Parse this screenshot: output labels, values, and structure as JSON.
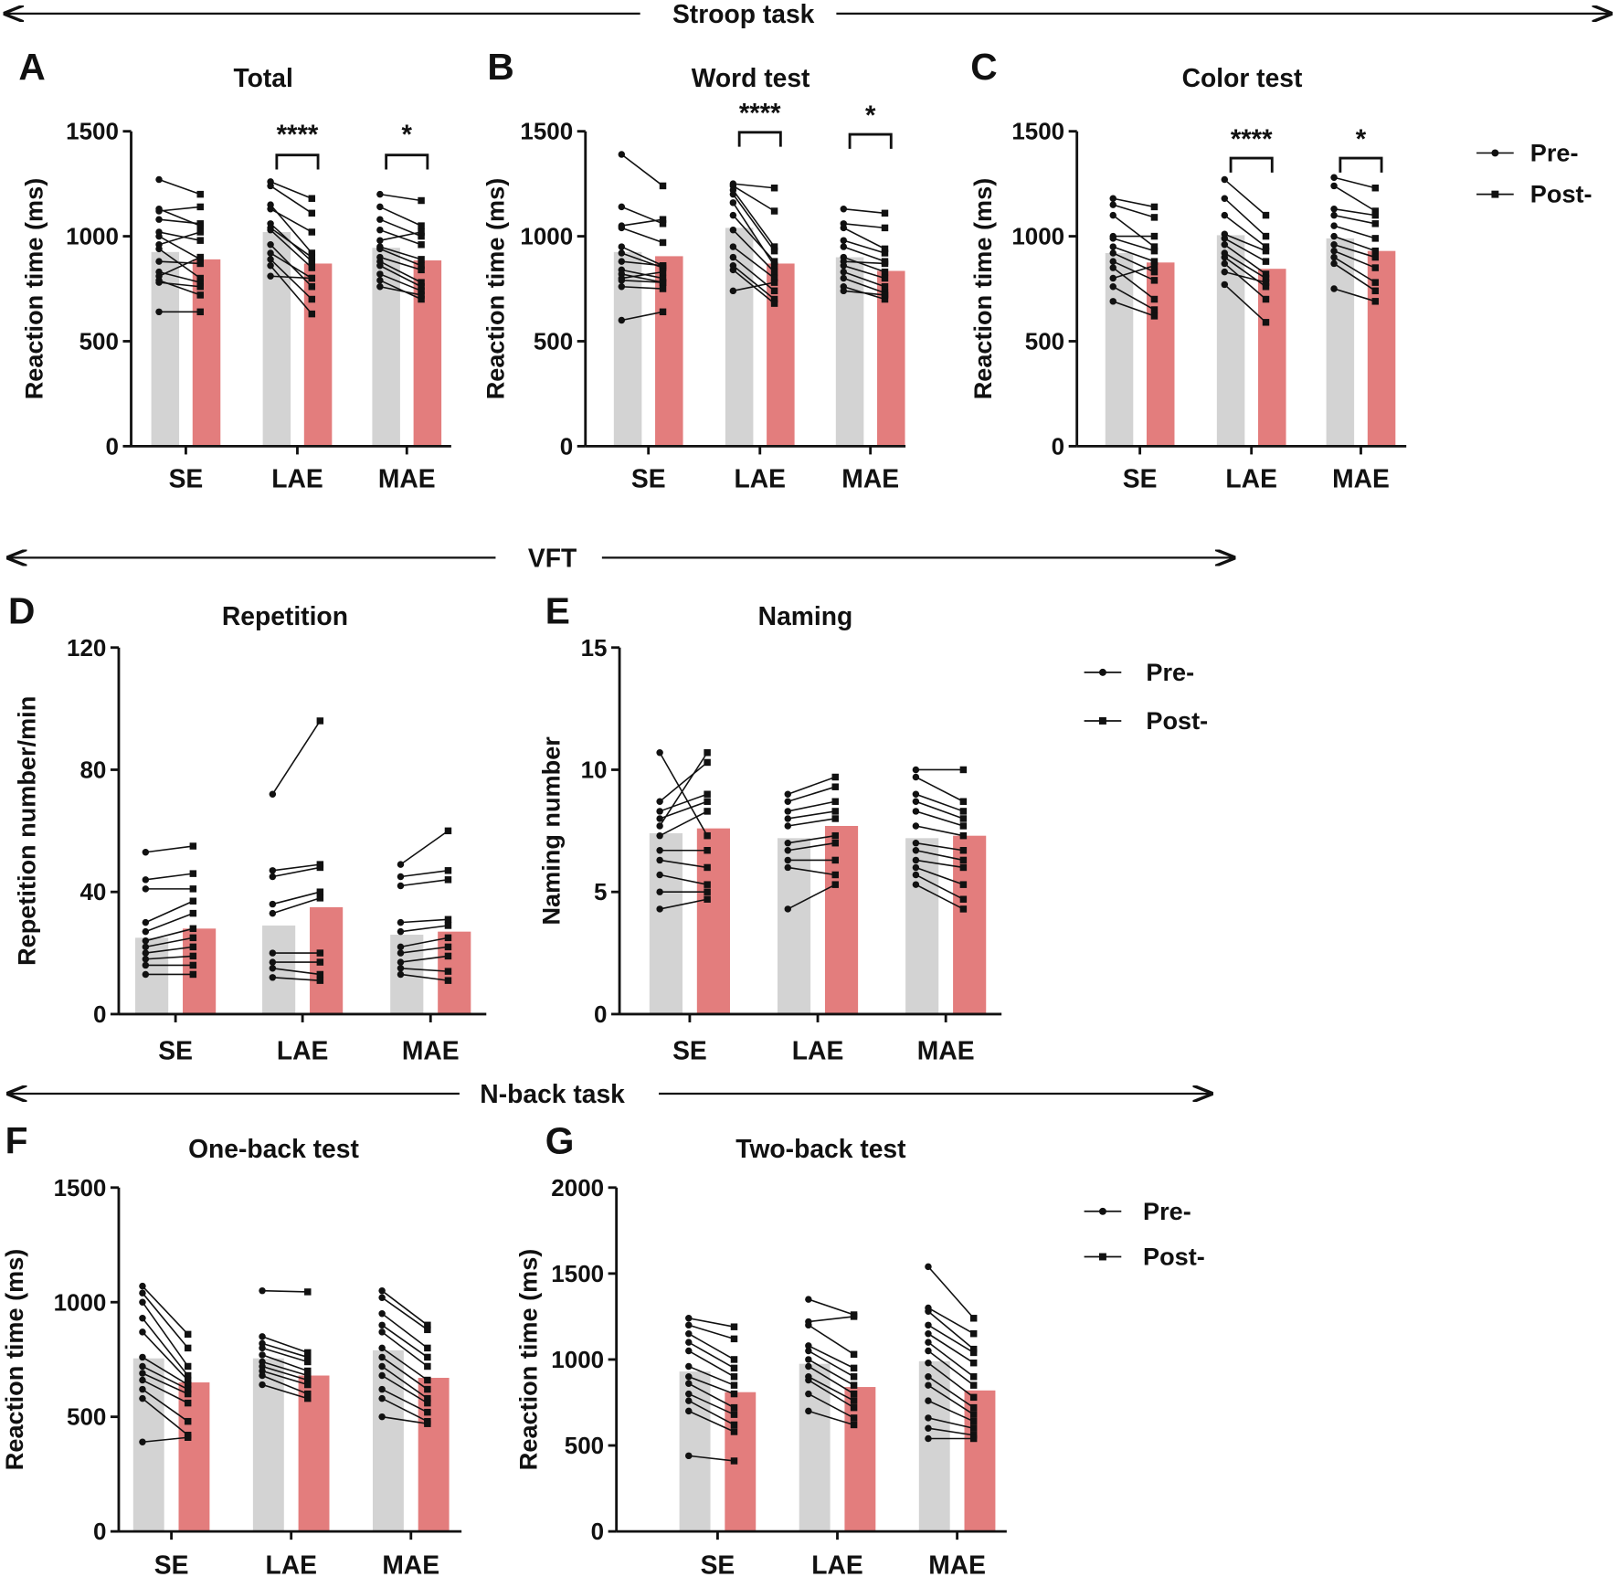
{
  "colors": {
    "pre": "#d3d3d3",
    "post": "#e37d7d",
    "ink": "#111111"
  },
  "sections": [
    {
      "label": "Stroop task"
    },
    {
      "label": "VFT"
    },
    {
      "label": "N-back task"
    }
  ],
  "legend": {
    "pre": "Pre-",
    "post": "Post-"
  },
  "chart_data": [
    {
      "type": "bar",
      "panel": "A",
      "title": "Total",
      "ylabel": "Reaction time (ms)",
      "ylim": [
        0,
        1500
      ],
      "yticks": [
        0,
        500,
        1000,
        1500
      ],
      "categories": [
        "SE",
        "LAE",
        "MAE"
      ],
      "series": [
        {
          "name": "Pre-",
          "values": [
            925,
            1020,
            945
          ]
        },
        {
          "name": "Post-",
          "values": [
            890,
            870,
            885
          ]
        }
      ],
      "significance": [
        "",
        "****",
        "*"
      ],
      "paired": [
        {
          "pre": [
            1270,
            1130,
            1120,
            1080,
            1020,
            1000,
            960,
            940,
            880,
            830,
            810,
            790,
            780,
            640
          ],
          "post": [
            1200,
            1050,
            1140,
            1060,
            980,
            890,
            1020,
            800,
            870,
            780,
            900,
            720,
            760,
            640
          ]
        },
        {
          "pre": [
            1260,
            1240,
            1150,
            1130,
            1060,
            1040,
            1030,
            960,
            920,
            890,
            860,
            810
          ],
          "post": [
            1180,
            1110,
            920,
            1020,
            880,
            900,
            850,
            760,
            800,
            700,
            630,
            800
          ]
        },
        {
          "pre": [
            1200,
            1140,
            1080,
            1030,
            980,
            950,
            940,
            900,
            880,
            860,
            820,
            790,
            760
          ],
          "post": [
            1170,
            1050,
            1000,
            960,
            1020,
            890,
            860,
            840,
            780,
            760,
            740,
            700,
            720
          ]
        }
      ]
    },
    {
      "type": "bar",
      "panel": "B",
      "title": "Word test",
      "ylabel": "Reaction time (ms)",
      "ylim": [
        0,
        1500
      ],
      "yticks": [
        0,
        500,
        1000,
        1500
      ],
      "categories": [
        "SE",
        "LAE",
        "MAE"
      ],
      "series": [
        {
          "name": "Pre-",
          "values": [
            925,
            1040,
            900
          ]
        },
        {
          "name": "Post-",
          "values": [
            905,
            870,
            835
          ]
        }
      ],
      "significance": [
        "",
        "****",
        "*"
      ],
      "paired": [
        {
          "pre": [
            1390,
            1140,
            1050,
            1040,
            950,
            920,
            880,
            840,
            820,
            800,
            790,
            760,
            600
          ],
          "post": [
            1240,
            1060,
            1080,
            970,
            860,
            850,
            860,
            800,
            780,
            830,
            780,
            750,
            640
          ]
        },
        {
          "pre": [
            1250,
            1240,
            1220,
            1200,
            1160,
            1100,
            1030,
            950,
            900,
            860,
            840,
            740
          ],
          "post": [
            1230,
            1120,
            950,
            930,
            860,
            880,
            830,
            800,
            740,
            700,
            680,
            780
          ]
        },
        {
          "pre": [
            1130,
            1060,
            1040,
            980,
            950,
            900,
            880,
            860,
            830,
            800,
            760,
            740
          ],
          "post": [
            1110,
            1040,
            940,
            920,
            880,
            830,
            870,
            800,
            760,
            730,
            700,
            720
          ]
        }
      ]
    },
    {
      "type": "bar",
      "panel": "C",
      "title": "Color test",
      "ylabel": "Reaction time (ms)",
      "ylim": [
        0,
        1500
      ],
      "yticks": [
        0,
        500,
        1000,
        1500
      ],
      "categories": [
        "SE",
        "LAE",
        "MAE"
      ],
      "series": [
        {
          "name": "Pre-",
          "values": [
            920,
            1005,
            990
          ]
        },
        {
          "name": "Post-",
          "values": [
            875,
            845,
            930
          ]
        }
      ],
      "significance": [
        "",
        "****",
        "*"
      ],
      "paired": [
        {
          "pre": [
            1180,
            1150,
            1100,
            1000,
            990,
            950,
            920,
            880,
            850,
            800,
            760,
            690
          ],
          "post": [
            1140,
            1090,
            950,
            1000,
            930,
            880,
            830,
            790,
            700,
            860,
            650,
            620
          ]
        },
        {
          "pre": [
            1270,
            1180,
            1100,
            1010,
            990,
            960,
            920,
            900,
            870,
            830,
            770
          ],
          "post": [
            1100,
            1000,
            950,
            930,
            880,
            820,
            800,
            760,
            700,
            780,
            590
          ]
        },
        {
          "pre": [
            1280,
            1240,
            1130,
            1100,
            1050,
            1000,
            960,
            930,
            900,
            870,
            750
          ],
          "post": [
            1230,
            1120,
            1100,
            1060,
            990,
            930,
            900,
            850,
            780,
            740,
            690
          ]
        }
      ]
    },
    {
      "type": "bar",
      "panel": "D",
      "title": "Repetition",
      "ylabel": "Repetition number/min",
      "ylim": [
        0,
        120
      ],
      "yticks": [
        0,
        40,
        80,
        120
      ],
      "categories": [
        "SE",
        "LAE",
        "MAE"
      ],
      "series": [
        {
          "name": "Pre-",
          "values": [
            25,
            29,
            26
          ]
        },
        {
          "name": "Post-",
          "values": [
            28,
            35,
            27
          ]
        }
      ],
      "significance": [
        "",
        "",
        ""
      ],
      "paired": [
        {
          "pre": [
            53,
            44,
            41,
            30,
            27,
            24,
            22,
            20,
            18,
            16,
            13
          ],
          "post": [
            55,
            46,
            41,
            37,
            33,
            28,
            25,
            22,
            19,
            16,
            13
          ]
        },
        {
          "pre": [
            72,
            47,
            45,
            36,
            33,
            20,
            17,
            15,
            12
          ],
          "post": [
            96,
            49,
            48,
            40,
            38,
            20,
            17,
            13,
            11
          ]
        },
        {
          "pre": [
            49,
            45,
            42,
            30,
            27,
            22,
            20,
            17,
            15,
            13
          ],
          "post": [
            60,
            47,
            44,
            31,
            29,
            25,
            22,
            19,
            14,
            11
          ]
        }
      ]
    },
    {
      "type": "bar",
      "panel": "E",
      "title": "Naming",
      "ylabel": "Naming number",
      "ylim": [
        0,
        15
      ],
      "yticks": [
        0,
        5,
        10,
        15
      ],
      "categories": [
        "SE",
        "LAE",
        "MAE"
      ],
      "series": [
        {
          "name": "Pre-",
          "values": [
            7.4,
            7.2,
            7.2
          ]
        },
        {
          "name": "Post-",
          "values": [
            7.6,
            7.7,
            7.3
          ]
        }
      ],
      "significance": [
        "",
        "",
        ""
      ],
      "paired": [
        {
          "pre": [
            10.7,
            8.7,
            8.3,
            8,
            7.7,
            7.3,
            6.7,
            6.3,
            5.7,
            5,
            4.3
          ],
          "post": [
            7.3,
            10.3,
            9,
            8.7,
            10.7,
            8.3,
            6.7,
            6,
            5.3,
            5,
            4.7
          ]
        },
        {
          "pre": [
            9,
            8.7,
            8.3,
            8,
            7.7,
            7,
            6.7,
            6.3,
            6,
            4.3
          ],
          "post": [
            9.7,
            9.3,
            8.7,
            8.3,
            8,
            7.3,
            7,
            6.3,
            5.7,
            5.3
          ]
        },
        {
          "pre": [
            10,
            9.7,
            9,
            8.7,
            8.3,
            7.7,
            7,
            6.7,
            6.3,
            6,
            5.7,
            5.3
          ],
          "post": [
            10,
            8.7,
            8.3,
            8,
            7.7,
            7.3,
            6.7,
            6.3,
            6,
            5.3,
            4.7,
            4.3
          ]
        }
      ]
    },
    {
      "type": "bar",
      "panel": "F",
      "title": "One-back test",
      "ylabel": "Reaction time (ms)",
      "ylim": [
        0,
        1500
      ],
      "yticks": [
        0,
        500,
        1000,
        1500
      ],
      "categories": [
        "SE",
        "LAE",
        "MAE"
      ],
      "series": [
        {
          "name": "Pre-",
          "values": [
            755,
            755,
            790
          ]
        },
        {
          "name": "Post-",
          "values": [
            650,
            680,
            670
          ]
        }
      ],
      "significance": [
        "",
        "",
        ""
      ],
      "paired": [
        {
          "pre": [
            1070,
            1040,
            1000,
            930,
            870,
            760,
            720,
            690,
            660,
            620,
            580,
            390
          ],
          "post": [
            860,
            800,
            720,
            680,
            660,
            640,
            620,
            600,
            560,
            480,
            420,
            410
          ]
        },
        {
          "pre": [
            1050,
            850,
            820,
            800,
            770,
            740,
            720,
            700,
            680,
            640
          ],
          "post": [
            1045,
            780,
            760,
            740,
            700,
            680,
            660,
            640,
            600,
            580
          ]
        },
        {
          "pre": [
            1050,
            1020,
            950,
            900,
            870,
            800,
            760,
            720,
            680,
            620,
            580,
            500
          ],
          "post": [
            900,
            880,
            800,
            760,
            720,
            660,
            620,
            580,
            560,
            520,
            480,
            470
          ]
        }
      ]
    },
    {
      "type": "bar",
      "panel": "G",
      "title": "Two-back test",
      "ylabel": "Reaction time (ms)",
      "ylim": [
        0,
        2000
      ],
      "yticks": [
        0,
        500,
        1000,
        1500,
        2000
      ],
      "categories": [
        "SE",
        "LAE",
        "MAE"
      ],
      "series": [
        {
          "name": "Pre-",
          "values": [
            930,
            975,
            990
          ]
        },
        {
          "name": "Post-",
          "values": [
            810,
            840,
            820
          ]
        }
      ],
      "significance": [
        "",
        "",
        ""
      ],
      "paired": [
        {
          "pre": [
            1240,
            1200,
            1150,
            1100,
            1050,
            960,
            900,
            860,
            800,
            760,
            700,
            440
          ],
          "post": [
            1190,
            1120,
            1000,
            950,
            900,
            850,
            800,
            720,
            680,
            620,
            580,
            410
          ]
        },
        {
          "pre": [
            1350,
            1220,
            1200,
            1080,
            1050,
            1000,
            960,
            900,
            880,
            800,
            700
          ],
          "post": [
            1260,
            1250,
            1030,
            950,
            900,
            850,
            800,
            760,
            720,
            660,
            620
          ]
        },
        {
          "pre": [
            1540,
            1300,
            1280,
            1200,
            1150,
            1100,
            1050,
            980,
            900,
            850,
            760,
            660,
            600,
            540
          ],
          "post": [
            1240,
            1150,
            1060,
            1040,
            980,
            900,
            850,
            780,
            720,
            680,
            640,
            600,
            560,
            540
          ]
        }
      ]
    }
  ]
}
